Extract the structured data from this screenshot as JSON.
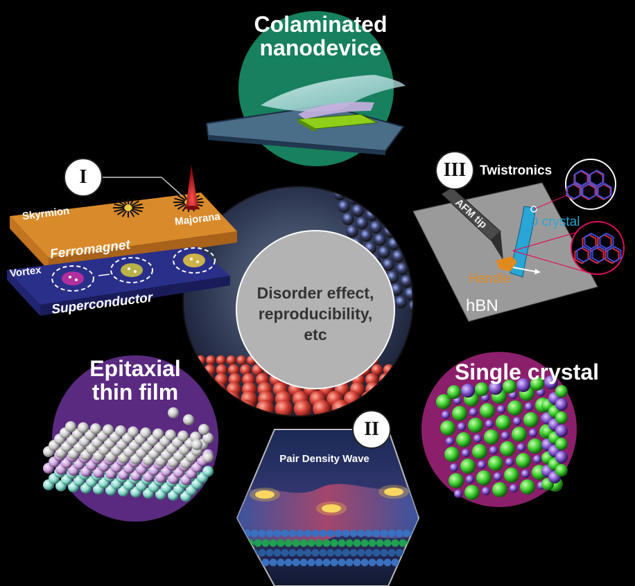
{
  "topics": {
    "colaminated": {
      "line1": "Colaminated",
      "line2": "nanodevice",
      "color": "#17805e"
    },
    "epitaxial": {
      "line1": "Epitaxial",
      "line2": "thin film",
      "color": "#5a2a80"
    },
    "single_crystal": {
      "label": "Single crystal",
      "color": "#8c1f6b"
    }
  },
  "center": {
    "line1": "Disorder effect,",
    "line2": "reproducibility,",
    "line3": "etc"
  },
  "panel_I": {
    "numeral": "I",
    "skyrmion": "Skyrmion",
    "majorana": "Majorana",
    "ferromagnet": "Ferromagnet",
    "vortex": "Vortex",
    "superconductor": "Superconductor"
  },
  "panel_II": {
    "numeral": "II",
    "title": "Pair Density Wave"
  },
  "panel_III": {
    "numeral": "III",
    "title": "Twistronics",
    "afm_tip": "AFM tip",
    "crystal": "2D crystal",
    "handle": "Handle",
    "substrate": "hBN"
  },
  "colors": {
    "ferromagnet": "#d98a2b",
    "superconductor": "#2a2f8a",
    "twist_bg": "#9a9a9a",
    "center_disc": "#b3b3b3",
    "handle": "#e08a1e",
    "crystal": "#2aa6d6"
  }
}
